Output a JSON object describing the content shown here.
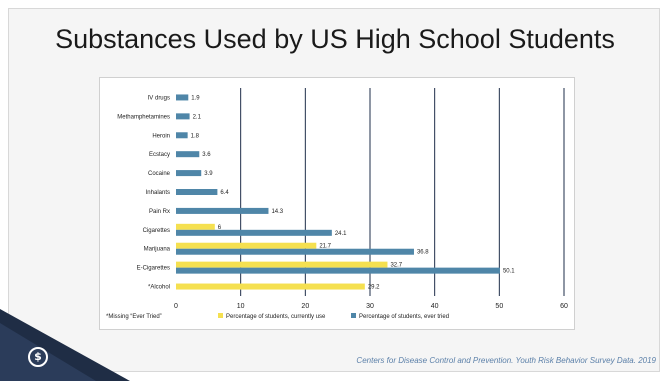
{
  "title": "Substances Used by US High School Students",
  "source": "Centers for Disease Control and Prevention. Youth Risk Behavior Survey Data. 2019",
  "footnote": "*Missing “Ever Tried”",
  "colors": {
    "current": "#f5e050",
    "ever": "#4f86a8",
    "gridline": "#1e2e4a",
    "dark": "#1f2d45"
  },
  "chart_data": {
    "type": "bar",
    "orientation": "horizontal",
    "categories": [
      "IV drugs",
      "Methamphetamines",
      "Heroin",
      "Ecstacy",
      "Cocaine",
      "Inhalants",
      "Pain Rx",
      "Cigarettes",
      "Marijuana",
      "E-Cigarettes",
      "*Alcohol"
    ],
    "series": [
      {
        "name": "Percentage of students, currently use",
        "values": [
          null,
          null,
          null,
          null,
          null,
          null,
          null,
          6,
          21.7,
          32.7,
          29.2
        ]
      },
      {
        "name": "Percentage of students, ever tried",
        "values": [
          1.9,
          2.1,
          1.8,
          3.6,
          3.9,
          6.4,
          14.3,
          24.1,
          36.8,
          50.1,
          null
        ]
      }
    ],
    "xlim": [
      0,
      60
    ],
    "xticks": [
      0,
      10,
      20,
      30,
      40,
      50,
      60
    ],
    "grid": true,
    "legend_position": "bottom"
  }
}
